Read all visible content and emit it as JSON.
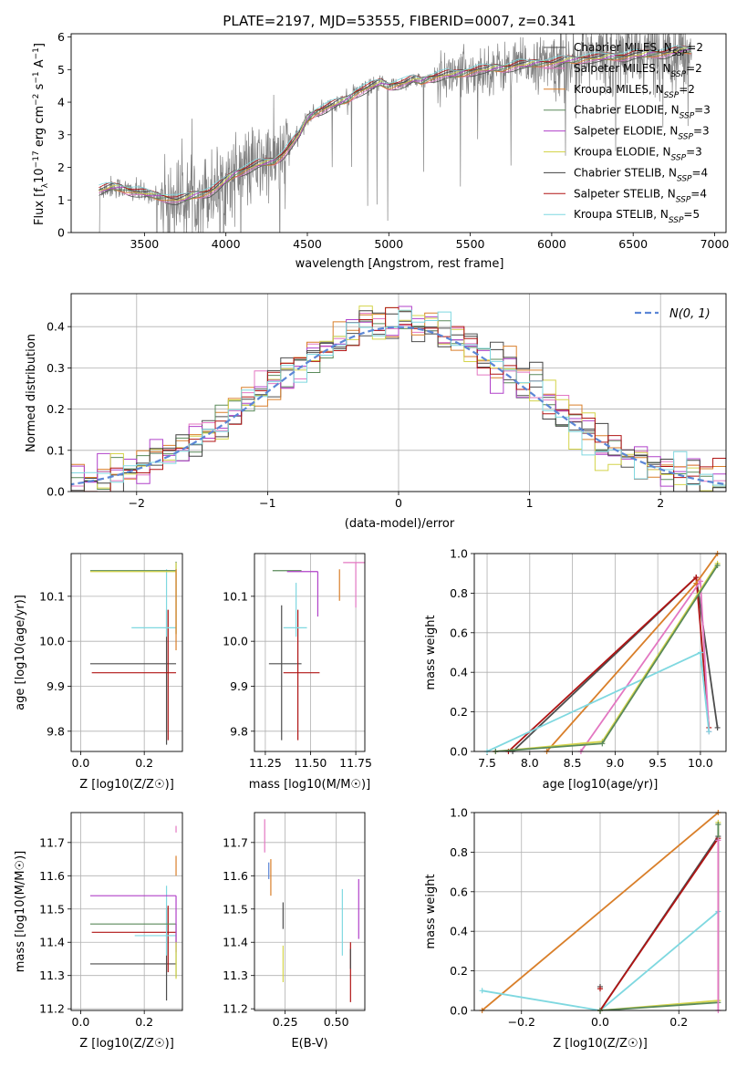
{
  "title": "PLATE=2197, MJD=53555, FIBERID=0007, z=0.341",
  "colors": {
    "spectrum": "#808080",
    "series": [
      "#4d4d4d",
      "#e377c2",
      "#d97f2a",
      "#5a8a5a",
      "#b041c9",
      "#d4d44a",
      "#404040",
      "#b01414",
      "#7fd8e0"
    ],
    "normal": "#5b86d6",
    "grid": "#b0b0b0"
  },
  "series_names": [
    "Chabrier MILES, N_SSP=2",
    "Salpeter MILES, N_SSP=2",
    "Kroupa MILES, N_SSP=2",
    "Chabrier ELODIE, N_SSP=3",
    "Salpeter ELODIE, N_SSP=3",
    "Kroupa ELODIE, N_SSP=3",
    "Chabrier STELIB, N_SSP=4",
    "Salpeter STELIB, N_SSP=4",
    "Kroupa STELIB, N_SSP=5"
  ],
  "chart_data": [
    {
      "type": "line",
      "title": "PLATE=2197, MJD=53555, FIBERID=0007, z=0.341",
      "xlabel": "wavelength [Angstrom, rest frame]",
      "ylabel_parts": [
        "Flux [f",
        "λ",
        "10",
        "−17",
        " erg cm",
        "−2",
        " s",
        "−1",
        " A",
        "−1",
        "]"
      ],
      "xlim": [
        3050,
        7070
      ],
      "ylim": [
        0,
        6.1
      ],
      "xticks": [
        3500,
        4000,
        4500,
        5000,
        5500,
        6000,
        6500,
        7000
      ],
      "yticks": [
        0,
        1,
        2,
        3,
        4,
        5,
        6
      ],
      "legend_position": "upper right",
      "legend": [
        {
          "base": "Chabrier MILES, N",
          "sub": "SSP",
          "tail": "=2"
        },
        {
          "base": "Salpeter MILES, N",
          "sub": "SSP",
          "tail": "=2"
        },
        {
          "base": "Kroupa MILES, N",
          "sub": "SSP",
          "tail": "=2"
        },
        {
          "base": "Chabrier ELODIE, N",
          "sub": "SSP",
          "tail": "=3"
        },
        {
          "base": "Salpeter ELODIE, N",
          "sub": "SSP",
          "tail": "=3"
        },
        {
          "base": "Kroupa ELODIE, N",
          "sub": "SSP",
          "tail": "=3"
        },
        {
          "base": "Chabrier STELIB, N",
          "sub": "SSP",
          "tail": "=4"
        },
        {
          "base": "Salpeter STELIB, N",
          "sub": "SSP",
          "tail": "=4"
        },
        {
          "base": "Kroupa STELIB, N",
          "sub": "SSP",
          "tail": "=5"
        }
      ],
      "continuum": {
        "x": [
          3220,
          3260,
          3300,
          3350,
          3400,
          3450,
          3500,
          3550,
          3600,
          3650,
          3700,
          3750,
          3800,
          3850,
          3900,
          3950,
          4000,
          4050,
          4100,
          4150,
          4200,
          4250,
          4300,
          4350,
          4400,
          4450,
          4500,
          4550,
          4600,
          4650,
          4700,
          4750,
          4800,
          4850,
          4900,
          4950,
          5000,
          5050,
          5100,
          5150,
          5200,
          5250,
          5300,
          5350,
          5400,
          5450,
          5500,
          5550,
          5600,
          5650,
          5700,
          5750,
          5800,
          5850,
          5900,
          5950,
          6000,
          6050,
          6100,
          6150,
          6200,
          6250,
          6300,
          6350,
          6400,
          6450,
          6500,
          6550,
          6600,
          6650,
          6700,
          6750,
          6800,
          6850
        ],
        "y": [
          1.3,
          1.35,
          1.4,
          1.38,
          1.3,
          1.25,
          1.2,
          1.15,
          1.1,
          1.05,
          1.0,
          1.05,
          1.15,
          1.2,
          1.25,
          1.4,
          1.6,
          1.8,
          1.9,
          2.0,
          2.1,
          2.15,
          2.2,
          2.4,
          2.7,
          3.0,
          3.5,
          3.7,
          3.8,
          3.9,
          4.0,
          4.1,
          4.3,
          4.4,
          4.5,
          4.6,
          4.5,
          4.55,
          4.6,
          4.7,
          4.65,
          4.75,
          4.8,
          4.85,
          4.85,
          4.9,
          4.95,
          5.0,
          5.0,
          5.05,
          5.05,
          5.1,
          5.15,
          5.15,
          5.2,
          5.2,
          5.2,
          5.25,
          5.3,
          5.3,
          5.35,
          5.35,
          5.35,
          5.4,
          5.4,
          5.4,
          5.45,
          5.45,
          5.5,
          5.5,
          5.5,
          5.55,
          5.6,
          5.6
        ]
      }
    },
    {
      "type": "line",
      "xlabel": "(data-model)/error",
      "ylabel": "Normed distribution",
      "xlim": [
        -2.5,
        2.5
      ],
      "ylim": [
        0,
        0.48
      ],
      "xticks": [
        -2,
        -1,
        0,
        1,
        2
      ],
      "yticks": [
        0.0,
        0.1,
        0.2,
        0.3,
        0.4
      ],
      "legend_position": "upper right",
      "legend": [
        {
          "label": "N(0, 1)",
          "style": "dashed"
        }
      ],
      "hist_bin_width": 0.1
    },
    {
      "type": "scatter",
      "xlabel": "Z [log10(Z/Z☉)]",
      "ylabel": "age  [log10(age/yr)]",
      "xlim": [
        -0.03,
        0.32
      ],
      "ylim": [
        9.755,
        10.195
      ],
      "xticks": [
        0.0,
        0.2
      ],
      "yticks": [
        9.8,
        9.9,
        10.0,
        10.1
      ],
      "errorbars": [
        {
          "series": 0,
          "x": 0.27,
          "xerr": [
            0.24,
            0.03
          ],
          "y": 9.95,
          "yerr": [
            0.18,
            0.12
          ]
        },
        {
          "series": 7,
          "x": 0.275,
          "xerr": [
            0.24,
            0.025
          ],
          "y": 9.93,
          "yerr": [
            0.15,
            0.14
          ]
        },
        {
          "series": 8,
          "x": 0.27,
          "xerr": [
            0.11,
            0.03
          ],
          "y": 10.03,
          "yerr": [
            0.02,
            0.13
          ]
        },
        {
          "series": 3,
          "x": 0.3,
          "xerr": [
            0.27,
            0.0
          ],
          "y": 10.157,
          "yerr": [
            0.14,
            0.02
          ]
        },
        {
          "series": 5,
          "x": 0.3,
          "xerr": [
            0.27,
            0.0
          ],
          "y": 10.155,
          "yerr": [
            0.14,
            0.02
          ]
        },
        {
          "series": 2,
          "x": 0.3,
          "xerr": [
            0.0,
            0.0
          ],
          "y": 10.16,
          "yerr": [
            0.18,
            0.0
          ]
        }
      ]
    },
    {
      "type": "scatter",
      "xlabel": "mass [log10(M/M☉)]",
      "ylabel": "",
      "xlim": [
        11.19,
        11.8
      ],
      "ylim": [
        9.755,
        10.195
      ],
      "xticks": [
        11.25,
        11.5,
        11.75
      ],
      "yticks": [
        9.8,
        9.9,
        10.0,
        10.1
      ],
      "errorbars": [
        {
          "series": 0,
          "x": 11.34,
          "xerr": [
            0.07,
            0.11
          ],
          "y": 9.95,
          "yerr": [
            0.17,
            0.13
          ]
        },
        {
          "series": 7,
          "x": 11.43,
          "xerr": [
            0.08,
            0.12
          ],
          "y": 9.93,
          "yerr": [
            0.15,
            0.14
          ]
        },
        {
          "series": 8,
          "x": 11.42,
          "xerr": [
            0.07,
            0.06
          ],
          "y": 10.03,
          "yerr": [
            0.02,
            0.1
          ]
        },
        {
          "series": 3,
          "x": 11.45,
          "xerr": [
            0.16,
            0.0
          ],
          "y": 10.157,
          "yerr": [
            0.0,
            0.0
          ]
        },
        {
          "series": 4,
          "x": 11.54,
          "xerr": [
            0.17,
            0.0
          ],
          "y": 10.155,
          "yerr": [
            0.1,
            0.0
          ]
        },
        {
          "series": 2,
          "x": 11.66,
          "xerr": [
            0.0,
            0.0
          ],
          "y": 10.16,
          "yerr": [
            0.07,
            0.0
          ]
        },
        {
          "series": 1,
          "x": 11.75,
          "xerr": [
            0.07,
            0.05
          ],
          "y": 10.175,
          "yerr": [
            0.1,
            0.0
          ]
        }
      ]
    },
    {
      "type": "line",
      "xlabel": "age  [log10(age/yr)]",
      "ylabel": "mass weight",
      "xlim": [
        7.35,
        10.3
      ],
      "ylim": [
        0.0,
        1.0
      ],
      "xticks": [
        7.5,
        8.0,
        8.5,
        9.0,
        9.5,
        10.0
      ],
      "yticks": [
        0.0,
        0.2,
        0.4,
        0.6,
        0.8,
        1.0
      ],
      "series": [
        {
          "series": 0,
          "x": [
            7.8,
            9.95,
            10.2
          ],
          "y": [
            0.0,
            0.88,
            0.12
          ]
        },
        {
          "series": 7,
          "x": 7.6,
          "y": 0.0
        },
        {
          "series": 7,
          "x": [
            7.75,
            9.95,
            10.1
          ],
          "y": [
            0.0,
            0.88,
            0.12
          ]
        },
        {
          "series": 2,
          "x": [
            8.2,
            9.95,
            10.2
          ],
          "y": [
            0.0,
            0.85,
            1.0
          ]
        },
        {
          "series": 1,
          "x": [
            8.6,
            10.0,
            10.1
          ],
          "y": [
            0.0,
            0.86,
            0.1
          ]
        },
        {
          "series": 8,
          "x": [
            7.5,
            10.0,
            10.1
          ],
          "y": [
            0.0,
            0.5,
            0.1
          ]
        },
        {
          "series": 5,
          "x": [
            7.6,
            8.85,
            10.2
          ],
          "y": [
            0.0,
            0.05,
            0.95
          ]
        },
        {
          "series": 3,
          "x": [
            7.6,
            8.85,
            10.2
          ],
          "y": [
            0.0,
            0.04,
            0.94
          ]
        }
      ]
    },
    {
      "type": "scatter",
      "xlabel": "Z [log10(Z/Z☉)]",
      "ylabel": "mass [log10(M/M☉)]",
      "xlim": [
        -0.03,
        0.32
      ],
      "ylim": [
        11.195,
        11.79
      ],
      "xticks": [
        0.0,
        0.2
      ],
      "yticks": [
        11.2,
        11.3,
        11.4,
        11.5,
        11.6,
        11.7
      ],
      "errorbars": [
        {
          "series": 0,
          "x": 0.27,
          "xerr": [
            0.24,
            0.03
          ],
          "y": 11.335,
          "yerr": [
            0.11,
            0.17
          ]
        },
        {
          "series": 7,
          "x": 0.275,
          "xerr": [
            0.24,
            0.025
          ],
          "y": 11.43,
          "yerr": [
            0.12,
            0.08
          ]
        },
        {
          "series": 8,
          "x": 0.27,
          "xerr": [
            0.1,
            0.03
          ],
          "y": 11.42,
          "yerr": [
            0.06,
            0.15
          ]
        },
        {
          "series": 3,
          "x": 0.3,
          "xerr": [
            0.27,
            0.0
          ],
          "y": 11.455,
          "yerr": [
            0.16,
            0.0
          ]
        },
        {
          "series": 4,
          "x": 0.3,
          "xerr": [
            0.27,
            0.0
          ],
          "y": 11.54,
          "yerr": [
            0.17,
            0.0
          ]
        },
        {
          "series": 5,
          "x": 0.3,
          "xerr": [
            0.0,
            0.0
          ],
          "y": 11.4,
          "yerr": [
            0.11,
            0.0
          ]
        },
        {
          "series": 2,
          "x": 0.3,
          "xerr": [
            0.0,
            0.0
          ],
          "y": 11.66,
          "yerr": [
            0.06,
            0.0
          ]
        },
        {
          "series": 1,
          "x": 0.3,
          "xerr": [
            0.0,
            0.0
          ],
          "y": 11.75,
          "yerr": [
            0.02,
            0.0
          ]
        }
      ]
    },
    {
      "type": "scatter",
      "xlabel": "E(B-V)",
      "ylabel": "",
      "xlim": [
        0.1,
        0.64
      ],
      "ylim": [
        11.195,
        11.79
      ],
      "xticks": [
        0.25,
        0.5
      ],
      "yticks": [
        11.2,
        11.3,
        11.4,
        11.5,
        11.6,
        11.7
      ],
      "errorbars": [
        {
          "series": 1,
          "x": 0.15,
          "xerr": [
            0.0,
            0.0
          ],
          "y": 11.72,
          "yerr": [
            0.05,
            0.05
          ]
        },
        {
          "series": 9,
          "x": 0.17,
          "xerr": [
            0.0,
            0.0
          ],
          "y": 11.62,
          "yerr": [
            0.03,
            0.02
          ]
        },
        {
          "series": 2,
          "x": 0.18,
          "xerr": [
            0.0,
            0.0
          ],
          "y": 11.6,
          "yerr": [
            0.06,
            0.05
          ]
        },
        {
          "series": 0,
          "x": 0.24,
          "xerr": [
            0.0,
            0.0
          ],
          "y": 11.48,
          "yerr": [
            0.04,
            0.04
          ]
        },
        {
          "series": 5,
          "x": 0.24,
          "xerr": [
            0.0,
            0.0
          ],
          "y": 11.39,
          "yerr": [
            0.11,
            0.0
          ]
        },
        {
          "series": 8,
          "x": 0.53,
          "xerr": [
            0.0,
            0.0
          ],
          "y": 11.46,
          "yerr": [
            0.1,
            0.1
          ]
        },
        {
          "series": 7,
          "x": 0.57,
          "xerr": [
            0.0,
            0.0
          ],
          "y": 11.3,
          "yerr": [
            0.08,
            0.1
          ]
        },
        {
          "series": 0,
          "x": 0.57,
          "xerr": [
            0.0,
            0.0
          ],
          "y": 11.38,
          "yerr": [
            0.06,
            0.0
          ]
        },
        {
          "series": 4,
          "x": 0.61,
          "xerr": [
            0.0,
            0.0
          ],
          "y": 11.5,
          "yerr": [
            0.09,
            0.09
          ]
        }
      ]
    },
    {
      "type": "line",
      "xlabel": "Z [log10(Z/Z☉)]",
      "ylabel": "mass weight",
      "xlim": [
        -0.32,
        0.32
      ],
      "ylim": [
        0.0,
        1.0
      ],
      "xticks": [
        -0.2,
        0.0,
        0.2
      ],
      "yticks": [
        0.0,
        0.2,
        0.4,
        0.6,
        0.8,
        1.0
      ],
      "series": [
        {
          "series": 2,
          "x": [
            -0.3,
            0.3
          ],
          "y": [
            0.0,
            1.0
          ]
        },
        {
          "series": 8,
          "x": [
            -0.3,
            0.0,
            0.3
          ],
          "y": [
            0.1,
            0.0,
            0.5
          ]
        },
        {
          "series": 0,
          "x": [
            0.0,
            0.3
          ],
          "y": [
            0.0,
            0.88
          ]
        },
        {
          "series": 7,
          "x": [
            0.0,
            0.3
          ],
          "y": [
            0.0,
            0.87
          ]
        },
        {
          "series": 5,
          "x": [
            0.0,
            0.3,
            0.3
          ],
          "y": [
            0.0,
            0.05,
            0.95
          ]
        },
        {
          "series": 3,
          "x": [
            0.0,
            0.3,
            0.3
          ],
          "y": [
            0.0,
            0.04,
            0.94
          ]
        },
        {
          "series": 1,
          "x": [
            0.3,
            0.3
          ],
          "y": [
            0.0,
            0.86
          ]
        }
      ],
      "points": [
        {
          "series": 0,
          "x": 0.0,
          "y": 0.12
        },
        {
          "series": 7,
          "x": 0.0,
          "y": 0.11
        }
      ]
    }
  ]
}
